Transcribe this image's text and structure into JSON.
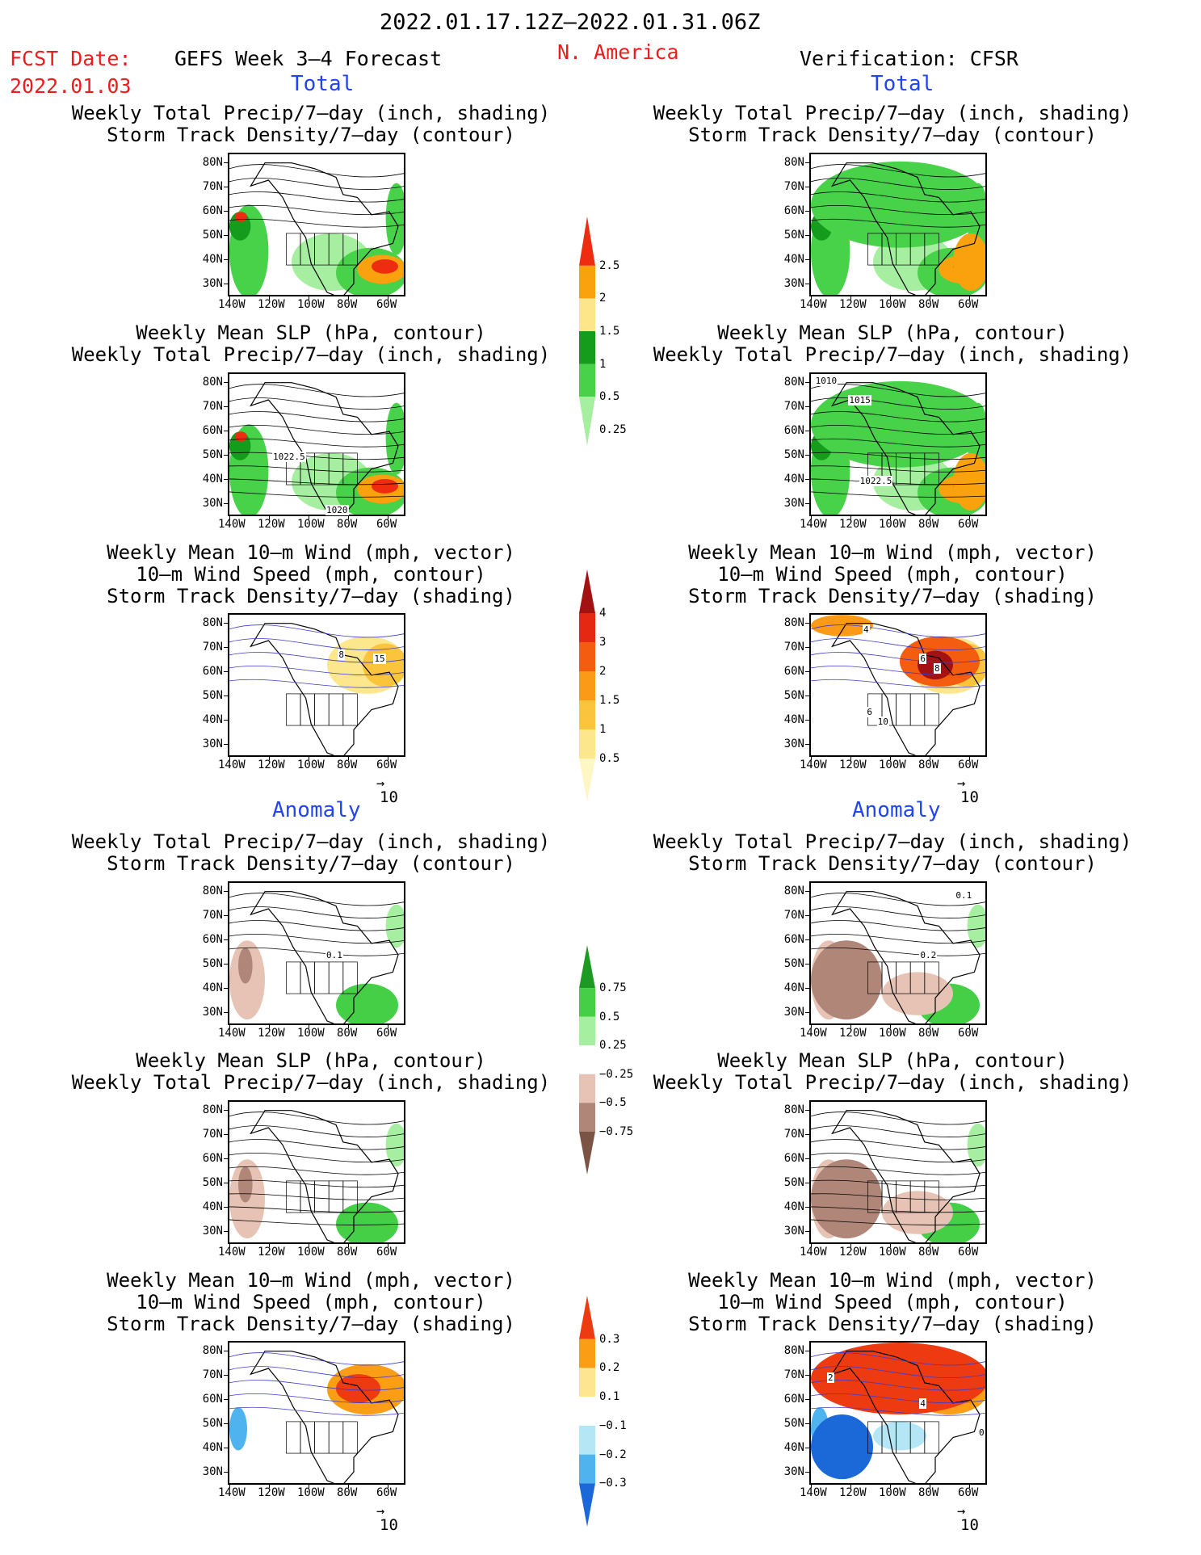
{
  "header": {
    "date_range": "2022.01.17.12Z–2022.01.31.06Z",
    "fcst_label": "FCST Date:",
    "fcst_date": "2022.01.03",
    "model": "GEFS Week 3–4 Forecast",
    "region": "N. America",
    "verification": "Verification: CFSR"
  },
  "sections": {
    "total": "Total",
    "anomaly": "Anomaly"
  },
  "panel_titles": {
    "precip_track": [
      "Weekly Total Precip/7–day (inch, shading)",
      "Storm Track Density/7–day (contour)"
    ],
    "slp_precip": [
      "Weekly Mean SLP (hPa, contour)",
      "Weekly Total Precip/7–day (inch, shading)"
    ],
    "wind_track": [
      "Weekly Mean 10–m Wind (mph, vector)",
      "10–m Wind Speed (mph, contour)",
      "Storm Track Density/7–day (shading)"
    ]
  },
  "axes": {
    "lat_labels": [
      "80N",
      "70N",
      "60N",
      "50N",
      "40N",
      "30N"
    ],
    "lon_labels": [
      "140W",
      "120W",
      "100W",
      "80W",
      "60W"
    ]
  },
  "contour_labels": {
    "gefs_slp_total": [
      "1022.5",
      "1020"
    ],
    "cfsr_slp_total": [
      "1010",
      "1015",
      "1022.5"
    ],
    "gefs_wind_total": [
      "8",
      "15"
    ],
    "cfsr_wind_total": [
      "4",
      "6",
      "8",
      "6",
      "10"
    ],
    "gefs_precip_anom": [
      "0.1"
    ],
    "cfsr_precip_anom": [
      "0.1",
      "0.2"
    ],
    "cfsr_wind_anom": [
      "2",
      "4",
      "0"
    ]
  },
  "vector_ref": "10",
  "colorbars": {
    "precip_total": {
      "labels": [
        "2.5",
        "2",
        "1.5",
        "1",
        "0.5",
        "0.25"
      ],
      "colors": [
        "#ee2d10",
        "#f9a20e",
        "#fde68a",
        "#169c1c",
        "#48d24a",
        "#a6efa0"
      ]
    },
    "track_total": {
      "labels": [
        "4",
        "3",
        "2",
        "1.5",
        "1",
        "0.5"
      ],
      "colors": [
        "#a31212",
        "#e52811",
        "#f45d0f",
        "#fa9a17",
        "#fbc43d",
        "#fde78d",
        "#fff6c6"
      ]
    },
    "precip_anom": {
      "labels": [
        "0.75",
        "0.5",
        "0.25",
        "−0.25",
        "−0.5",
        "−0.75"
      ],
      "colors": [
        "#1e9a23",
        "#44cf47",
        "#a6efa0",
        "#ffffff",
        "#e6c3b4",
        "#b08678",
        "#7c5446"
      ]
    },
    "track_anom": {
      "labels": [
        "0.3",
        "0.2",
        "0.1",
        "−0.1",
        "−0.2",
        "−0.3"
      ],
      "colors": [
        "#ee3a10",
        "#fb9d15",
        "#fee590",
        "#ffffff",
        "#b5e6f5",
        "#4fb3ef",
        "#1b68d8"
      ]
    }
  },
  "colors": {
    "header_red": "#ee1c1c",
    "section_blue": "#2244ee"
  }
}
